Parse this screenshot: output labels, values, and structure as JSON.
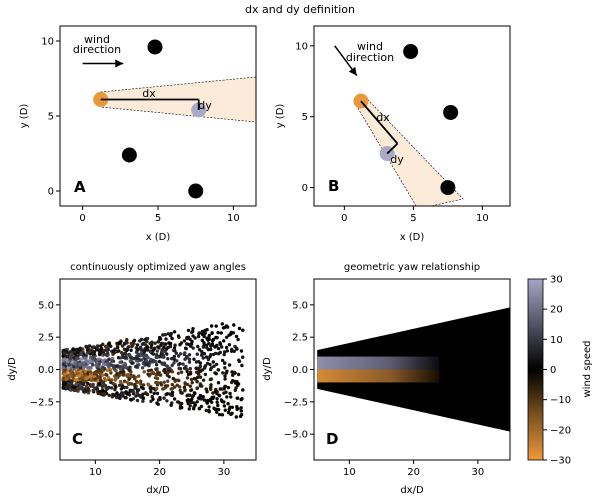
{
  "figure": {
    "suptitle": "dx and dy definition"
  },
  "panels": {
    "A": {
      "letter": "A",
      "xlabel": "x (D)",
      "ylabel": "y (D)",
      "xticks": [
        0,
        5,
        10
      ],
      "yticks": [
        0,
        5,
        10
      ],
      "xlim": [
        -1.5,
        11.5
      ],
      "ylim": [
        -1,
        11
      ],
      "wind_label_line1": "wind",
      "wind_label_line2": "direction",
      "dx_label": "dx",
      "dy_label": "dy"
    },
    "B": {
      "letter": "B",
      "xlabel": "x (D)",
      "ylabel": "y (D)",
      "xticks": [
        0,
        5,
        10
      ],
      "yticks": [
        0,
        5,
        10
      ],
      "xlim": [
        -2.2,
        12
      ],
      "ylim": [
        -1.3,
        11.4
      ],
      "wind_label_line1": "wind",
      "wind_label_line2": "direction",
      "dx_label": "dx",
      "dy_label": "dy"
    },
    "C": {
      "letter": "C",
      "title": "continuously optimized yaw angles",
      "xlabel": "dx/D",
      "ylabel": "dy/D",
      "xticks": [
        10,
        20,
        30
      ],
      "yticks": [
        -5.0,
        -2.5,
        0.0,
        2.5,
        5.0
      ],
      "ytick_labels": [
        "−5.0",
        "−2.5",
        "0.0",
        "2.5",
        "5.0"
      ],
      "xlim": [
        4.5,
        35
      ],
      "ylim": [
        -7,
        7
      ]
    },
    "D": {
      "letter": "D",
      "title": "geometric yaw relationship",
      "xlabel": "dx/D",
      "ylabel": "dy/D",
      "xticks": [
        10,
        20,
        30
      ],
      "yticks": [
        -5.0,
        -2.5,
        0.0,
        2.5,
        5.0
      ],
      "ytick_labels": [
        "−5.0",
        "−2.5",
        "0.0",
        "2.5",
        "5.0"
      ],
      "xlim": [
        4.5,
        35
      ],
      "ylim": [
        -7,
        7
      ]
    }
  },
  "colorbar": {
    "label": "wind speed",
    "range": [
      -30,
      30
    ],
    "ticks": [
      30,
      20,
      10,
      0,
      -10,
      -20,
      -30
    ],
    "tick_labels": [
      "30",
      "20",
      "10",
      "0",
      "−10",
      "−20",
      "−30"
    ]
  },
  "chart_data": [
    {
      "type": "scatter",
      "panel": "A",
      "turbines_black": [
        [
          4.8,
          9.6
        ],
        [
          3.1,
          2.4
        ],
        [
          7.5,
          0.0
        ]
      ],
      "upstream_turbine": [
        1.2,
        6.1
      ],
      "downstream_turbine": [
        7.7,
        5.4
      ],
      "wake_polygon": [
        [
          1.2,
          6.6
        ],
        [
          11.5,
          7.6
        ],
        [
          11.5,
          4.6
        ],
        [
          1.2,
          5.6
        ]
      ],
      "dx_segment": [
        [
          1.2,
          6.1
        ],
        [
          7.7,
          6.1
        ]
      ],
      "dy_segment": [
        [
          7.7,
          6.1
        ],
        [
          7.7,
          5.4
        ]
      ],
      "wind_arrow": [
        [
          0.0,
          8.5
        ],
        [
          2.7,
          8.5
        ]
      ],
      "colors": {
        "upstream": "#e8973a",
        "downstream": "#a9a9c9",
        "wake_fill": "#fcebd9",
        "turbine": "#000000"
      }
    },
    {
      "type": "scatter",
      "panel": "B",
      "turbines_black": [
        [
          4.8,
          9.6
        ],
        [
          7.7,
          5.3
        ],
        [
          7.5,
          0.0
        ]
      ],
      "upstream_turbine": [
        1.2,
        6.1
      ],
      "downstream_turbine": [
        3.1,
        2.4
      ],
      "wake_polygon": [
        [
          0.8,
          5.9
        ],
        [
          1.6,
          6.3
        ],
        [
          8.6,
          -0.8
        ],
        [
          6.3,
          -1.3
        ],
        [
          5.2,
          -1.3
        ]
      ],
      "dx_segment": [
        [
          1.2,
          6.1
        ],
        [
          3.85,
          3.1
        ]
      ],
      "dy_segment": [
        [
          3.85,
          3.1
        ],
        [
          3.1,
          2.4
        ]
      ],
      "wind_arrow": [
        [
          -0.7,
          10.0
        ],
        [
          0.9,
          7.9
        ]
      ],
      "colors": {
        "upstream": "#e8973a",
        "downstream": "#a9a9c9",
        "wake_fill": "#fcebd9",
        "turbine": "#000000"
      }
    },
    {
      "type": "scatter",
      "panel": "C",
      "description_of_values": "yaw angle colored by wind speed in a widening wake wedge",
      "wedge_x": [
        5,
        33
      ],
      "wedge_half_width_at_x5": 1.5,
      "wedge_half_width_at_x33": 3.8,
      "color_scale": [
        -30,
        30
      ]
    },
    {
      "type": "heatmap",
      "panel": "D",
      "wedge_x": [
        5,
        35
      ],
      "wedge_top": [
        1.5,
        4.8
      ],
      "wedge_bottom": [
        -1.5,
        -4.8
      ],
      "positive_band_y": [
        0.0,
        1.0
      ],
      "negative_band_y": [
        -1.0,
        0.0
      ],
      "band_x": [
        5,
        24
      ],
      "color_scale": [
        -30,
        30
      ]
    }
  ]
}
